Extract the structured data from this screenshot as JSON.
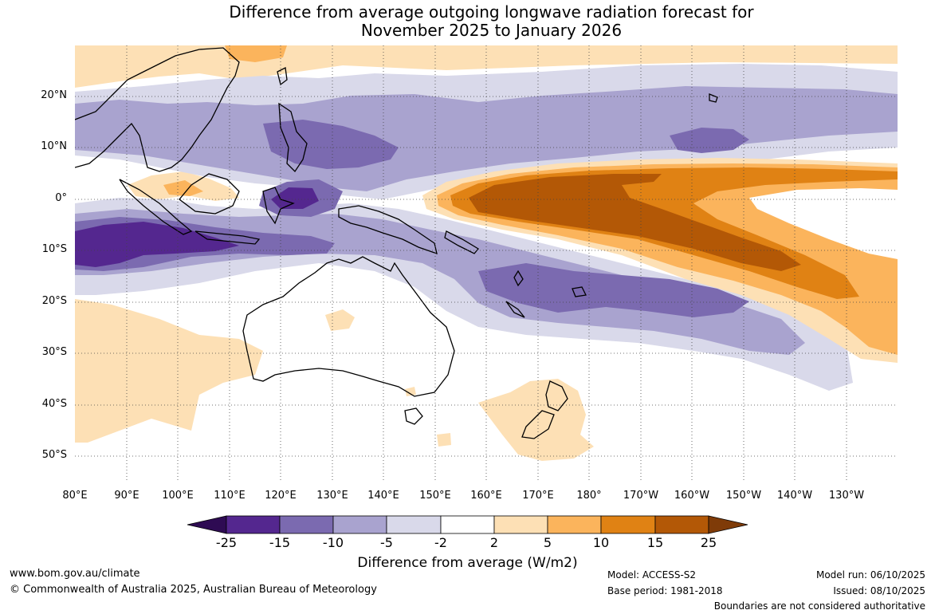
{
  "title": {
    "line1": "Difference from average outgoing longwave radiation forecast for",
    "line2": "November 2025 to January 2026"
  },
  "map": {
    "lat_ticks": [
      "20°N",
      "10°N",
      "0°",
      "10°S",
      "20°S",
      "30°S",
      "40°S",
      "50°S"
    ],
    "lon_ticks": [
      "80°E",
      "90°E",
      "100°E",
      "110°E",
      "120°E",
      "130°E",
      "140°E",
      "150°E",
      "160°E",
      "170°E",
      "180°",
      "170°W",
      "160°W",
      "150°W",
      "140°W",
      "130°W"
    ],
    "lat_range": [
      -55,
      30
    ],
    "lon_range": [
      80,
      240
    ]
  },
  "legend": {
    "title": "Difference from average (W/m2)",
    "labels": [
      "-25",
      "-15",
      "-10",
      "-5",
      "-2",
      "2",
      "5",
      "10",
      "15",
      "25"
    ],
    "colors": [
      "#2e0b53",
      "#54278f",
      "#7b6ab0",
      "#a9a3cf",
      "#d9d9ea",
      "#ffffff",
      "#fde0b5",
      "#fbb45c",
      "#e08214",
      "#b35806",
      "#7f3b08"
    ]
  },
  "footer": {
    "website": "www.bom.gov.au/climate",
    "copyright": "© Commonwealth of Australia 2025, Australian Bureau of Meteorology",
    "model": "Model: ACCESS-S2",
    "base_period": "Base period: 1981-2018",
    "model_run": "Model run: 06/10/2025",
    "issued": "Issued: 08/10/2025",
    "disclaimer": "Boundaries are not considered authoritative"
  }
}
